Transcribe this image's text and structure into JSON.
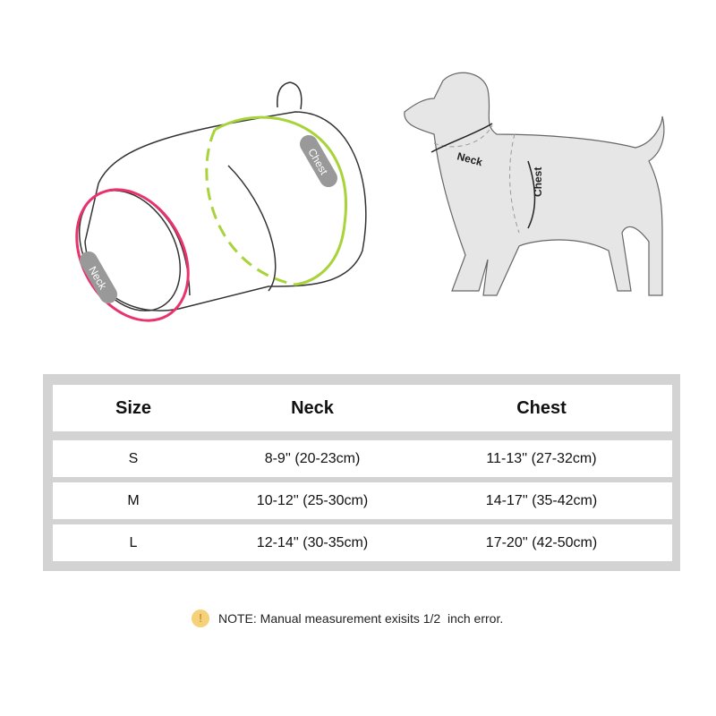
{
  "illustration": {
    "harness_labels": {
      "chest": "Chest",
      "neck": "Neck"
    },
    "dog_labels": {
      "neck": "Neck",
      "chest": "Chest"
    },
    "colors": {
      "chest_ring": "#a8d33a",
      "neck_ring": "#e8336d",
      "dog_body": "#e6e6e6",
      "label_pill": "#999999"
    }
  },
  "size_table": {
    "headers": [
      "Size",
      "Neck",
      "Chest"
    ],
    "rows": [
      [
        "S",
        "8-9'' (20-23cm)",
        "11-13'' (27-32cm)"
      ],
      [
        "M",
        "10-12'' (25-30cm)",
        "14-17'' (35-42cm)"
      ],
      [
        "L",
        "12-14'' (30-35cm)",
        "17-20'' (42-50cm)"
      ]
    ]
  },
  "note": {
    "icon": "exclamation-icon",
    "icon_glyph": "!",
    "text": "NOTE: Manual measurement exisits 1/2  inch error."
  }
}
